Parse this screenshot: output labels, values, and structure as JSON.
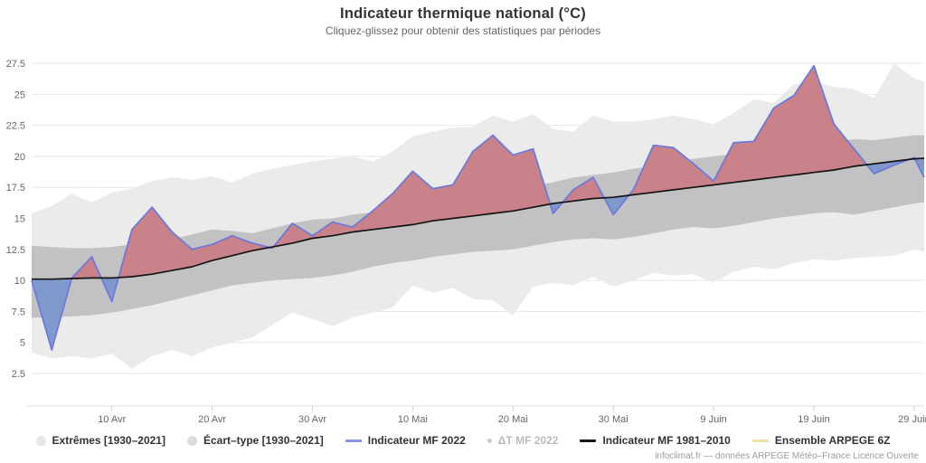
{
  "header": {
    "title": "Indicateur thermique national (°C)",
    "subtitle": "Cliquez-glissez pour obtenir des statistiques par périodes"
  },
  "y_axis": {
    "ticks": [
      27.5,
      25,
      22.5,
      20,
      17.5,
      15,
      12.5,
      10,
      7.5,
      5,
      2.5
    ]
  },
  "x_axis": {
    "ticks": [
      {
        "label": "10 Avr",
        "day": 8
      },
      {
        "label": "20 Avr",
        "day": 18
      },
      {
        "label": "30 Avr",
        "day": 28
      },
      {
        "label": "10 Mai",
        "day": 38
      },
      {
        "label": "20 Mai",
        "day": 48
      },
      {
        "label": "30 Mai",
        "day": 58
      },
      {
        "label": "9 Juin",
        "day": 68
      },
      {
        "label": "19 Juin",
        "day": 78
      },
      {
        "label": "29 Juin",
        "day": 88
      }
    ]
  },
  "legend": {
    "items": [
      {
        "label": "Extrêmes [1930–2021]",
        "marker": "circle",
        "color": "#e6e6e6",
        "disabled": false
      },
      {
        "label": "Écart–type [1930–2021]",
        "marker": "circle",
        "color": "#dcdcdc",
        "disabled": false
      },
      {
        "label": "Indicateur MF 2022",
        "marker": "line",
        "color": "#8a94e2",
        "disabled": false
      },
      {
        "label": "ΔT MF 2022",
        "marker": "dot",
        "color": "#cccccc",
        "disabled": true
      },
      {
        "label": "Indicateur MF 1981–2010",
        "marker": "line",
        "color": "#141414",
        "disabled": false
      },
      {
        "label": "Ensemble ARPEGE 6Z",
        "marker": "line",
        "color": "#ede2a6",
        "disabled": false
      }
    ]
  },
  "footer": {
    "credit": "infoclimat.fr — données ARPEGE Météo–France Licence Ouverte"
  },
  "colors": {
    "extremes_band": "#ebebeb",
    "std_band": "#c2c2c4",
    "above_normal_fill": "#c9818a",
    "below_normal_fill": "#8099cd",
    "mf2022_line": "#6e7ad6",
    "mf1981_line": "#141414",
    "grid": "#e7e7e7",
    "axis_text": "#666666",
    "tick": "#ccd2dc",
    "axis_line": "#e0e0e0"
  },
  "chart_data": {
    "type": "area",
    "title": "Indicateur thermique national (°C)",
    "ylabel": "°C",
    "ylim": [
      2.5,
      27.5
    ],
    "grid": "horizontal",
    "legend_position": "bottom",
    "dates": [
      "2 Avr",
      "4 Avr",
      "6 Avr",
      "8 Avr",
      "10 Avr",
      "12 Avr",
      "14 Avr",
      "16 Avr",
      "18 Avr",
      "20 Avr",
      "22 Avr",
      "24 Avr",
      "26 Avr",
      "28 Avr",
      "30 Avr",
      "2 Mai",
      "4 Mai",
      "6 Mai",
      "8 Mai",
      "10 Mai",
      "12 Mai",
      "14 Mai",
      "16 Mai",
      "18 Mai",
      "20 Mai",
      "22 Mai",
      "24 Mai",
      "26 Mai",
      "28 Mai",
      "30 Mai",
      "1 Juin",
      "3 Juin",
      "5 Juin",
      "7 Juin",
      "9 Juin",
      "11 Juin",
      "13 Juin",
      "15 Juin",
      "17 Juin",
      "19 Juin",
      "21 Juin",
      "23 Juin",
      "25 Juin",
      "27 Juin",
      "29 Juin",
      "30 Juin"
    ],
    "days": [
      0,
      2,
      4,
      6,
      8,
      10,
      12,
      14,
      16,
      18,
      20,
      22,
      24,
      26,
      28,
      30,
      32,
      34,
      36,
      38,
      40,
      42,
      44,
      46,
      48,
      50,
      52,
      54,
      56,
      58,
      60,
      62,
      64,
      66,
      68,
      70,
      72,
      74,
      76,
      78,
      80,
      82,
      84,
      86,
      88,
      89
    ],
    "series": [
      {
        "name": "Extrêmes [1930–2021]",
        "type": "band",
        "max": [
          15.4,
          16.0,
          17.0,
          16.3,
          17.1,
          17.4,
          18.0,
          18.3,
          18.1,
          18.4,
          17.9,
          18.6,
          19.0,
          19.3,
          19.6,
          19.8,
          20.0,
          19.6,
          20.4,
          21.6,
          22.0,
          22.3,
          22.4,
          23.3,
          22.8,
          23.4,
          22.2,
          22.0,
          23.3,
          22.8,
          22.8,
          23.0,
          23.3,
          23.0,
          22.6,
          23.5,
          24.6,
          24.3,
          25.8,
          26.1,
          25.6,
          25.4,
          24.7,
          27.5,
          26.3,
          26.0
        ],
        "min": [
          4.2,
          3.7,
          3.9,
          3.7,
          4.1,
          2.9,
          3.9,
          4.4,
          3.9,
          4.6,
          5.0,
          5.4,
          6.4,
          7.4,
          6.9,
          6.3,
          7.0,
          7.4,
          7.8,
          9.6,
          9.0,
          9.4,
          8.5,
          8.4,
          7.2,
          9.5,
          9.8,
          9.6,
          10.3,
          9.5,
          10.0,
          10.6,
          10.4,
          10.5,
          9.8,
          10.7,
          11.1,
          10.9,
          11.4,
          11.7,
          11.6,
          11.8,
          11.9,
          12.0,
          12.5,
          12.3
        ]
      },
      {
        "name": "Écart–type [1930–2021]",
        "type": "band",
        "max": [
          12.8,
          12.7,
          12.6,
          12.6,
          12.7,
          12.9,
          13.1,
          13.3,
          13.7,
          14.1,
          14.0,
          13.8,
          14.2,
          14.6,
          14.9,
          15.0,
          15.3,
          15.5,
          15.8,
          16.1,
          16.4,
          16.6,
          16.8,
          17.0,
          17.2,
          17.6,
          17.9,
          18.3,
          18.5,
          18.7,
          19.0,
          19.2,
          19.5,
          19.8,
          20.0,
          20.2,
          20.3,
          20.4,
          20.6,
          20.8,
          21.1,
          21.4,
          21.3,
          21.5,
          21.7,
          21.7
        ],
        "min": [
          7.0,
          7.0,
          7.1,
          7.2,
          7.4,
          7.7,
          8.0,
          8.4,
          8.8,
          9.2,
          9.6,
          9.8,
          10.0,
          10.1,
          10.2,
          10.4,
          10.7,
          11.1,
          11.4,
          11.6,
          11.9,
          12.1,
          12.3,
          12.4,
          12.5,
          12.8,
          13.1,
          13.3,
          13.4,
          13.3,
          13.5,
          13.8,
          14.1,
          14.3,
          14.2,
          14.4,
          14.7,
          15.0,
          15.2,
          15.4,
          15.5,
          15.3,
          15.6,
          15.9,
          16.2,
          16.3
        ]
      },
      {
        "name": "Indicateur MF 2022",
        "type": "line",
        "values": [
          10.0,
          4.4,
          10.2,
          11.9,
          8.3,
          14.1,
          15.9,
          13.9,
          12.5,
          12.9,
          13.6,
          13.0,
          12.6,
          14.6,
          13.6,
          14.7,
          14.3,
          15.6,
          17.0,
          18.8,
          17.4,
          17.7,
          20.4,
          21.7,
          20.1,
          20.6,
          15.4,
          17.3,
          18.3,
          15.3,
          17.3,
          20.9,
          20.7,
          19.4,
          18.0,
          21.1,
          21.2,
          23.9,
          24.9,
          27.3,
          22.6,
          20.6,
          18.6,
          19.3,
          19.9,
          18.3
        ]
      },
      {
        "name": "Indicateur MF 1981–2010",
        "type": "line",
        "values": [
          10.1,
          10.1,
          10.15,
          10.2,
          10.2,
          10.3,
          10.5,
          10.8,
          11.1,
          11.6,
          12.0,
          12.4,
          12.7,
          13.0,
          13.4,
          13.6,
          13.9,
          14.1,
          14.3,
          14.5,
          14.8,
          15.0,
          15.2,
          15.4,
          15.6,
          15.9,
          16.2,
          16.4,
          16.6,
          16.7,
          16.9,
          17.1,
          17.3,
          17.5,
          17.7,
          17.9,
          18.1,
          18.3,
          18.5,
          18.7,
          18.9,
          19.2,
          19.4,
          19.6,
          19.8,
          19.85
        ]
      },
      {
        "name": "ΔT MF 2022",
        "type": "line",
        "visible": false
      },
      {
        "name": "Ensemble ARPEGE 6Z",
        "type": "line",
        "visible": false
      }
    ]
  }
}
